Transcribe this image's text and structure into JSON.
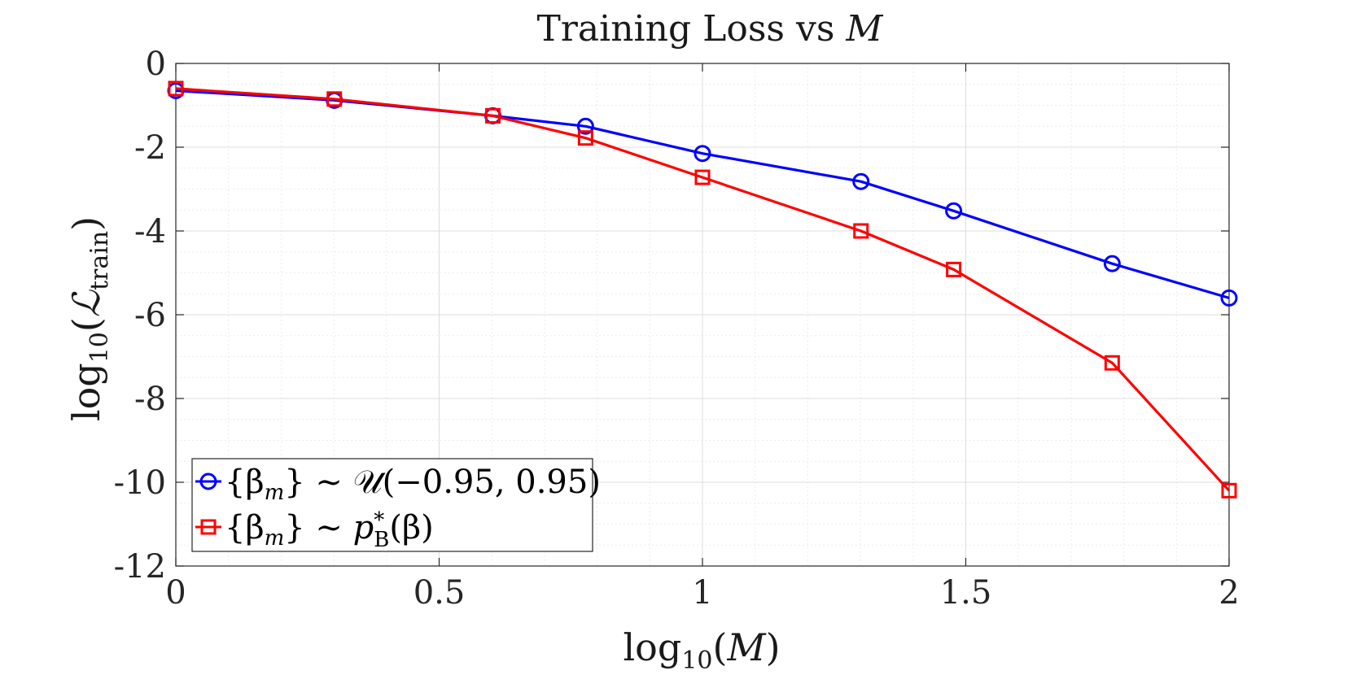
{
  "chart_data": {
    "type": "line",
    "title": "Training Loss vs M",
    "title_parts": {
      "prefix": "Training Loss vs ",
      "var": "M"
    },
    "xlabel": "log10(M)",
    "xlabel_parts": {
      "fn": "log",
      "sub": "10",
      "arg": "M"
    },
    "ylabel": "log10(L_train)",
    "ylabel_parts": {
      "fn": "log",
      "sub": "10",
      "sym": "ℒ",
      "symsub": "train"
    },
    "xlim": [
      0,
      2
    ],
    "ylim": [
      -12,
      0
    ],
    "xticks": [
      0,
      0.5,
      1,
      1.5,
      2
    ],
    "xtick_labels": [
      "0",
      "0.5",
      "1",
      "1.5",
      "2"
    ],
    "yticks": [
      0,
      -2,
      -4,
      -6,
      -8,
      -10,
      -12
    ],
    "ytick_labels": [
      "0",
      "-2",
      "-4",
      "-6",
      "-8",
      "-10",
      "-12"
    ],
    "grid": true,
    "minor_grid": true,
    "legend_position": "bottom-left",
    "series": [
      {
        "name": "{βm} ∼ U(−0.95, 0.95)",
        "legend_parts": {
          "set": "{β",
          "setsub": "m",
          "close": "} ∼ ",
          "dist": "𝒰(−0.95, 0.95)"
        },
        "marker": "circle",
        "color": "#0000ff",
        "x": [
          0,
          0.301,
          0.602,
          0.778,
          1.0,
          1.301,
          1.477,
          1.778,
          2.0
        ],
        "y": [
          -0.65,
          -0.88,
          -1.25,
          -1.5,
          -2.15,
          -2.82,
          -3.52,
          -4.78,
          -5.6
        ]
      },
      {
        "name": "{βm} ∼ p*B(β)",
        "legend_parts": {
          "set": "{β",
          "setsub": "m",
          "close": "} ∼ ",
          "p": "p",
          "psup": "*",
          "psub": "B",
          "arg": "(β)"
        },
        "marker": "square",
        "color": "#ff0000",
        "x": [
          0,
          0.301,
          0.602,
          0.778,
          1.0,
          1.301,
          1.477,
          1.778,
          2.0
        ],
        "y": [
          -0.6,
          -0.85,
          -1.25,
          -1.78,
          -2.72,
          -4.0,
          -4.92,
          -7.15,
          -10.2
        ]
      }
    ]
  }
}
